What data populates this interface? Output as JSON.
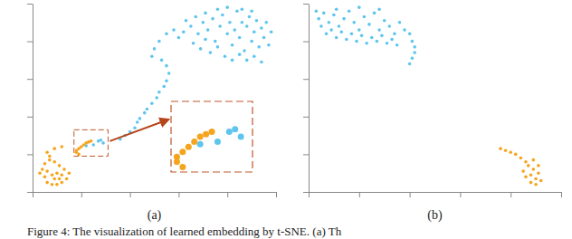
{
  "chart_data": [
    {
      "type": "scatter",
      "title": "(a)",
      "tick_labels": false,
      "xlim": [
        0,
        100
      ],
      "ylim": [
        0,
        100
      ],
      "xticks": [
        0,
        20,
        40,
        60,
        80,
        100
      ],
      "yticks": [
        0,
        20,
        40,
        60,
        80,
        100
      ],
      "inset": {
        "xlim": [
          17,
          31
        ],
        "ylim": [
          19,
          33
        ]
      },
      "series": [
        {
          "color": "#5ec5ee",
          "marker": "circle",
          "values": [
            [
              60,
              82
            ],
            [
              62,
              85
            ],
            [
              65,
              88
            ],
            [
              68,
              84
            ],
            [
              70,
              90
            ],
            [
              72,
              86
            ],
            [
              74,
              92
            ],
            [
              75,
              80
            ],
            [
              77,
              88
            ],
            [
              78,
              94
            ],
            [
              80,
              84
            ],
            [
              81,
              90
            ],
            [
              82,
              78
            ],
            [
              83,
              86
            ],
            [
              84,
              96
            ],
            [
              85,
              82
            ],
            [
              86,
              90
            ],
            [
              87,
              75
            ],
            [
              88,
              88
            ],
            [
              89,
              93
            ],
            [
              90,
              80
            ],
            [
              91,
              85
            ],
            [
              92,
              91
            ],
            [
              93,
              77
            ],
            [
              94,
              87
            ],
            [
              95,
              82
            ],
            [
              96,
              90
            ],
            [
              97,
              78
            ],
            [
              98,
              85
            ],
            [
              66,
              79
            ],
            [
              69,
              76
            ],
            [
              71,
              81
            ],
            [
              73,
              74
            ],
            [
              76,
              77
            ],
            [
              79,
              72
            ],
            [
              82,
              70
            ],
            [
              85,
              73
            ],
            [
              88,
              70
            ],
            [
              91,
              72
            ],
            [
              94,
              69
            ],
            [
              63,
              91
            ],
            [
              67,
              93
            ],
            [
              71,
              95
            ],
            [
              76,
              97
            ],
            [
              80,
              98
            ],
            [
              86,
              97
            ],
            [
              90,
              96
            ],
            [
              58,
              86
            ],
            [
              55,
              84
            ],
            [
              52,
              80
            ],
            [
              50,
              76
            ],
            [
              49,
              72
            ],
            [
              53,
              70
            ],
            [
              55,
              67
            ],
            [
              56,
              63
            ],
            [
              55,
              59
            ],
            [
              54,
              56
            ],
            [
              52,
              53
            ],
            [
              51,
              50
            ],
            [
              49,
              47
            ],
            [
              47,
              44
            ],
            [
              46,
              42
            ],
            [
              44,
              39
            ],
            [
              43,
              37
            ],
            [
              42,
              34
            ],
            [
              40,
              32
            ],
            [
              38,
              30
            ],
            [
              36,
              28
            ],
            [
              27,
              27
            ],
            [
              28,
              27.5
            ],
            [
              25,
              25
            ],
            [
              22,
              24.5
            ],
            [
              29,
              26
            ]
          ]
        },
        {
          "color": "#f5a41d",
          "marker": "circle",
          "values": [
            [
              4,
              12
            ],
            [
              5,
              8
            ],
            [
              6,
              5
            ],
            [
              8,
              4
            ],
            [
              10,
              4
            ],
            [
              12,
              5
            ],
            [
              14,
              7
            ],
            [
              15,
              10
            ],
            [
              13,
              12
            ],
            [
              11,
              14
            ],
            [
              9,
              16
            ],
            [
              7,
              17
            ],
            [
              5,
              15
            ],
            [
              3,
              10
            ],
            [
              8,
              9
            ],
            [
              10,
              10
            ],
            [
              12,
              9
            ],
            [
              6,
              11
            ],
            [
              9,
              7
            ],
            [
              11,
              7
            ],
            [
              7,
              19
            ],
            [
              6,
              21
            ],
            [
              9,
              23
            ],
            [
              12,
              24
            ],
            [
              18,
              22
            ],
            [
              19,
              23
            ],
            [
              20,
              24
            ],
            [
              21,
              25
            ],
            [
              22,
              26
            ],
            [
              23,
              26.5
            ],
            [
              24,
              27
            ],
            [
              18,
              21
            ],
            [
              19,
              20
            ]
          ]
        }
      ]
    },
    {
      "type": "scatter",
      "title": "(b)",
      "tick_labels": false,
      "xlim": [
        0,
        100
      ],
      "ylim": [
        0,
        100
      ],
      "xticks": [
        0,
        20,
        40,
        60,
        80,
        100
      ],
      "yticks": [
        0,
        20,
        40,
        60,
        80,
        100
      ],
      "series": [
        {
          "color": "#5ec5ee",
          "marker": "circle",
          "values": [
            [
              4,
              92
            ],
            [
              6,
              95
            ],
            [
              8,
              90
            ],
            [
              10,
              94
            ],
            [
              12,
              88
            ],
            [
              14,
              92
            ],
            [
              16,
              96
            ],
            [
              18,
              90
            ],
            [
              20,
              86
            ],
            [
              22,
              93
            ],
            [
              24,
              89
            ],
            [
              26,
              95
            ],
            [
              28,
              86
            ],
            [
              30,
              91
            ],
            [
              32,
              88
            ],
            [
              34,
              84
            ],
            [
              36,
              90
            ],
            [
              38,
              86
            ],
            [
              5,
              88
            ],
            [
              7,
              84
            ],
            [
              9,
              86
            ],
            [
              11,
              82
            ],
            [
              13,
              85
            ],
            [
              15,
              81
            ],
            [
              17,
              84
            ],
            [
              19,
              80
            ],
            [
              21,
              83
            ],
            [
              23,
              79
            ],
            [
              25,
              82
            ],
            [
              27,
              80
            ],
            [
              29,
              83
            ],
            [
              31,
              79
            ],
            [
              33,
              81
            ],
            [
              35,
              78
            ],
            [
              3,
              96
            ],
            [
              11,
              97
            ],
            [
              20,
              98
            ],
            [
              28,
              97
            ],
            [
              40,
              84
            ],
            [
              41,
              80
            ],
            [
              42,
              77
            ],
            [
              42,
              74
            ],
            [
              41,
              71
            ],
            [
              40,
              68
            ]
          ]
        },
        {
          "color": "#f5a41d",
          "marker": "circle",
          "values": [
            [
              86,
              8
            ],
            [
              88,
              5
            ],
            [
              90,
              7
            ],
            [
              91,
              10
            ],
            [
              89,
              12
            ],
            [
              87,
              14
            ],
            [
              85,
              11
            ],
            [
              92,
              6
            ],
            [
              90,
              4
            ],
            [
              88,
              9
            ],
            [
              86,
              16
            ],
            [
              89,
              17
            ],
            [
              91,
              14
            ],
            [
              84,
              18
            ],
            [
              82,
              20
            ],
            [
              80,
              21
            ],
            [
              78,
              22
            ],
            [
              76,
              23
            ]
          ]
        }
      ]
    }
  ],
  "caption": "Figure 4: The visualization of learned embedding by t-SNE. (a) Th"
}
